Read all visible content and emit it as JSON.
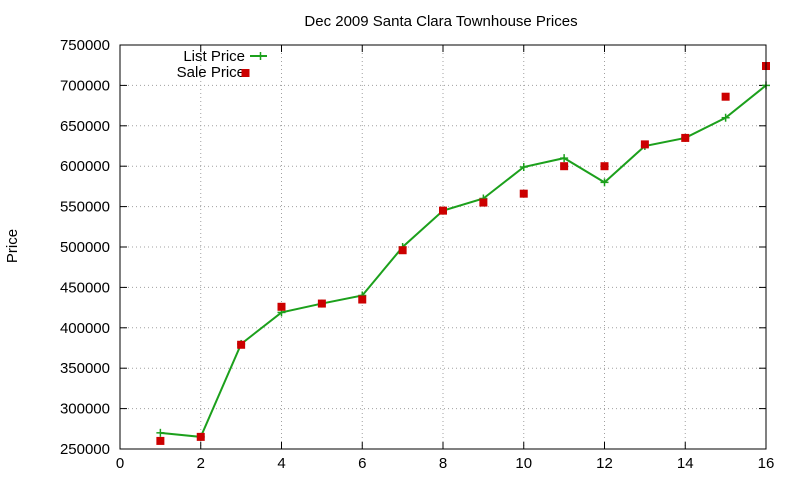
{
  "chart_data": {
    "type": "line",
    "title": "Dec 2009 Santa Clara Townhouse Prices",
    "xlabel": "",
    "ylabel": "Price",
    "xlim": [
      0,
      16
    ],
    "ylim": [
      250000,
      750000
    ],
    "xticks": [
      0,
      2,
      4,
      6,
      8,
      10,
      12,
      14,
      16
    ],
    "yticks": [
      250000,
      300000,
      350000,
      400000,
      450000,
      500000,
      550000,
      600000,
      650000,
      700000,
      750000
    ],
    "grid": true,
    "legend_position": "top-left",
    "series": [
      {
        "name": "List Price",
        "style": "line with plus markers",
        "color": "#1ca01c",
        "points": [
          [
            1,
            270000
          ],
          [
            2,
            265000
          ],
          [
            3,
            380000
          ],
          [
            4,
            419000
          ],
          [
            5,
            430000
          ],
          [
            6,
            440000
          ],
          [
            7,
            500000
          ],
          [
            8,
            545000
          ],
          [
            9,
            560000
          ],
          [
            10,
            599000
          ],
          [
            11,
            610000
          ],
          [
            12,
            580000
          ],
          [
            13,
            625000
          ],
          [
            14,
            635000
          ],
          [
            15,
            660000
          ],
          [
            16,
            700000
          ]
        ]
      },
      {
        "name": "Sale Price",
        "style": "square markers",
        "color": "#cc0000",
        "points": [
          [
            1,
            260000
          ],
          [
            2,
            265000
          ],
          [
            3,
            379000
          ],
          [
            4,
            426000
          ],
          [
            5,
            430000
          ],
          [
            6,
            435000
          ],
          [
            7,
            496000
          ],
          [
            8,
            545000
          ],
          [
            9,
            555000
          ],
          [
            10,
            566000
          ],
          [
            11,
            600000
          ],
          [
            12,
            600000
          ],
          [
            13,
            627000
          ],
          [
            14,
            635000
          ],
          [
            15,
            686000
          ],
          [
            16,
            724000
          ]
        ]
      }
    ]
  }
}
